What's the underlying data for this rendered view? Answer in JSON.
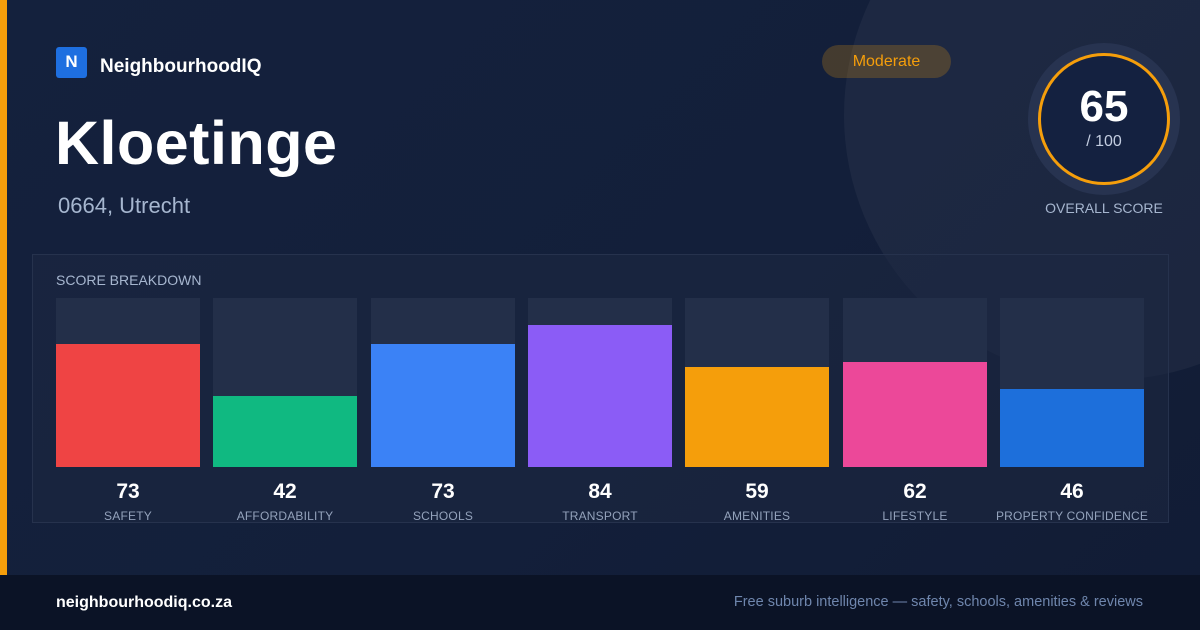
{
  "brand": {
    "logo_letter": "N",
    "name": "NeighbourhoodIQ"
  },
  "badge": {
    "label": "Moderate",
    "color": "#f59e0b"
  },
  "suburb": {
    "name": "Kloetinge",
    "location": "0664, Utrecht"
  },
  "overall": {
    "score": "65",
    "out_of": "/ 100",
    "label": "OVERALL SCORE"
  },
  "breakdown": {
    "title": "SCORE BREAKDOWN",
    "max": 100,
    "items": [
      {
        "label": "SAFETY",
        "value": 73,
        "color": "#ef4444"
      },
      {
        "label": "AFFORDABILITY",
        "value": 42,
        "color": "#10b981"
      },
      {
        "label": "SCHOOLS",
        "value": 73,
        "color": "#3b82f6"
      },
      {
        "label": "TRANSPORT",
        "value": 84,
        "color": "#8b5cf6"
      },
      {
        "label": "AMENITIES",
        "value": 59,
        "color": "#f59e0b"
      },
      {
        "label": "LIFESTYLE",
        "value": 62,
        "color": "#ec4899"
      },
      {
        "label": "PROPERTY CONFIDENCE",
        "value": 46,
        "color": "#1d6fdb"
      }
    ]
  },
  "footer": {
    "url": "neighbourhoodiq.co.za",
    "tagline": "Free suburb intelligence — safety, schools, amenities & reviews"
  }
}
